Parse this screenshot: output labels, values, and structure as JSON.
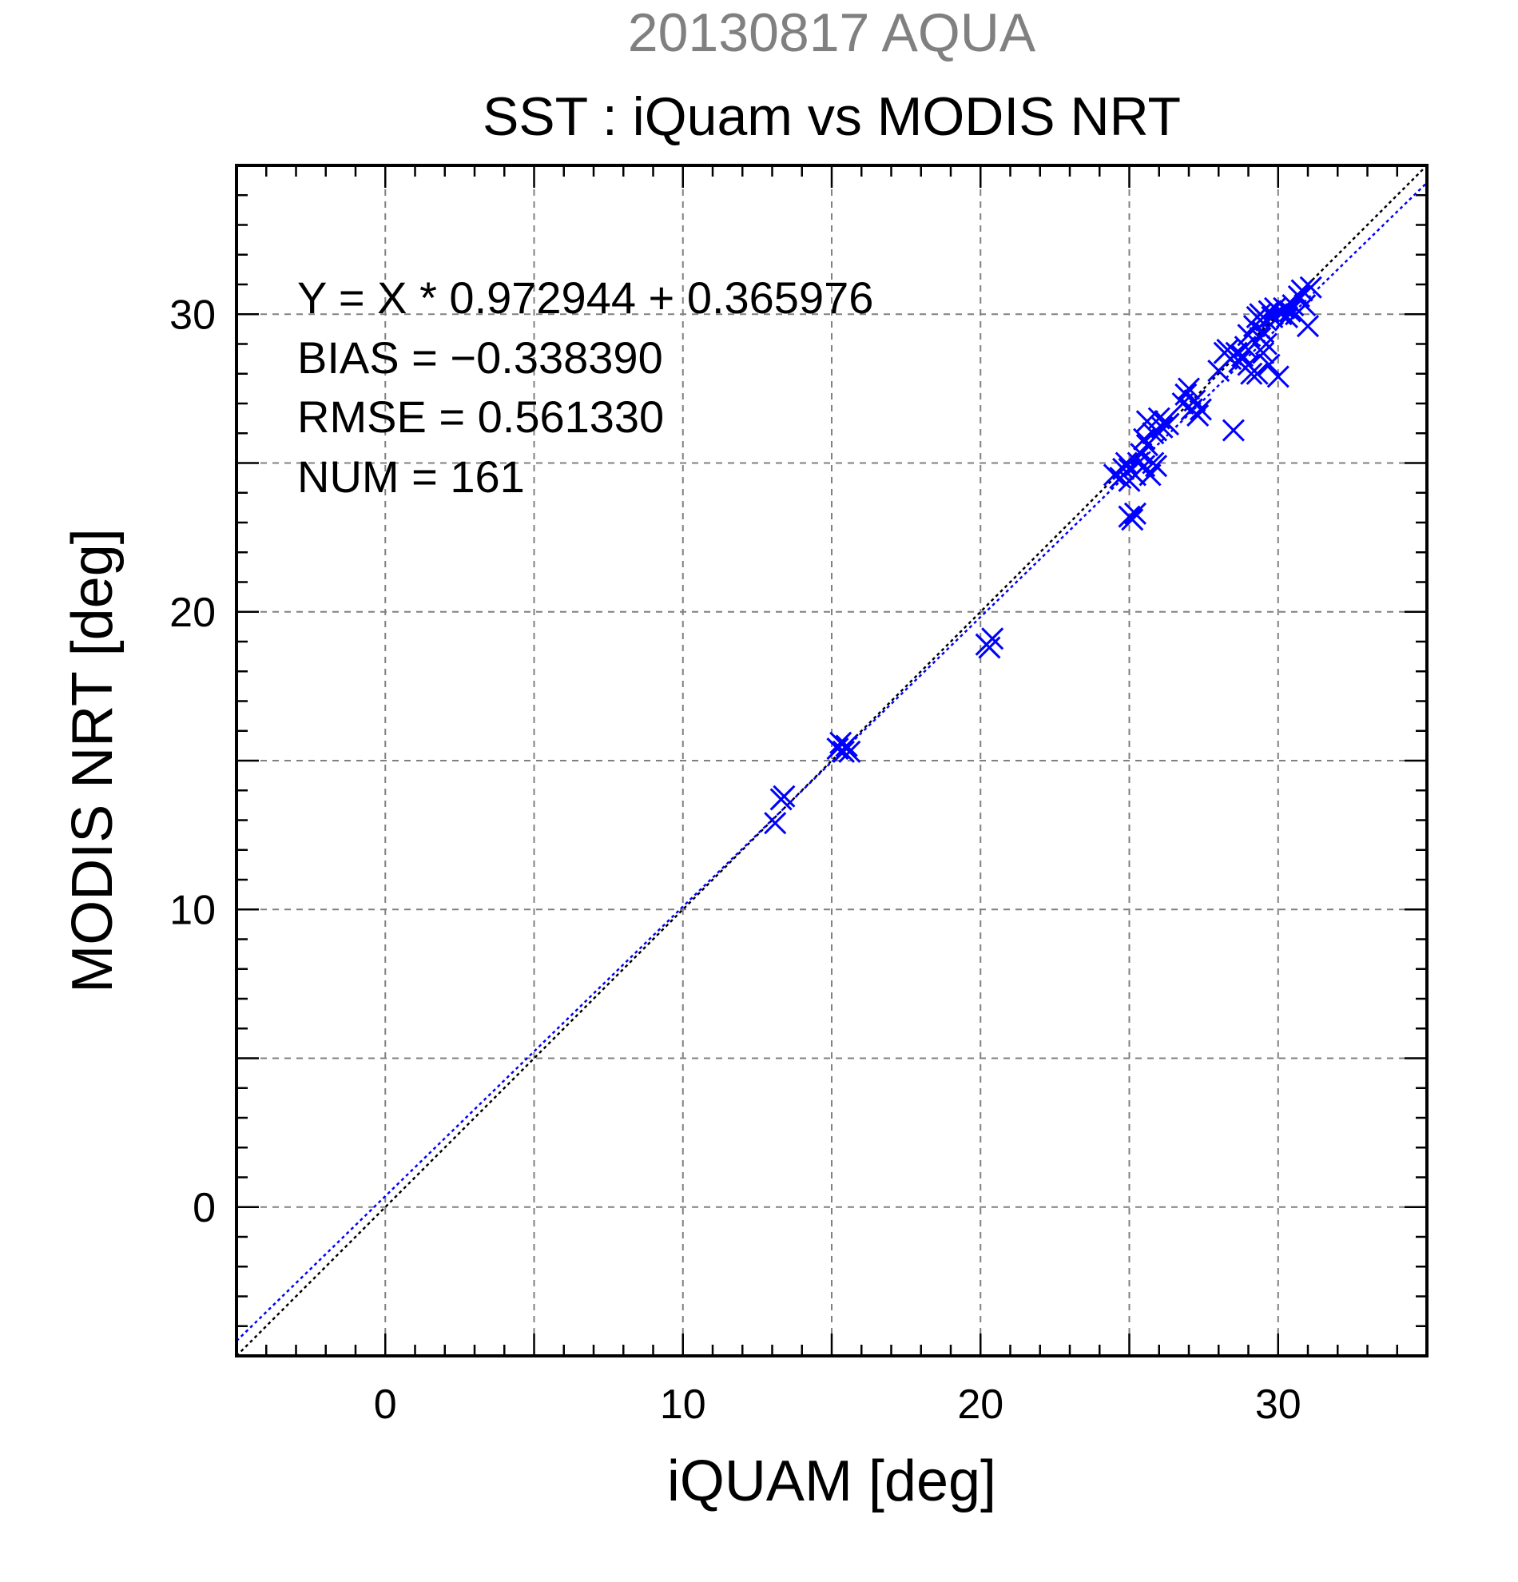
{
  "chart_data": {
    "type": "scatter",
    "supertitle": "20130817 AQUA",
    "title": "SST : iQuam vs MODIS NRT",
    "xlabel": "iQUAM [deg]",
    "ylabel": "MODIS NRT [deg]",
    "xlim": [
      -5,
      35
    ],
    "ylim": [
      -5,
      35
    ],
    "xticks": [
      0,
      10,
      20,
      30
    ],
    "yticks": [
      0,
      10,
      20,
      30
    ],
    "xtick_labels": [
      "0",
      "10",
      "20",
      "30"
    ],
    "ytick_labels": [
      "0",
      "10",
      "20",
      "30"
    ],
    "grid": true,
    "grid_step": 5,
    "minor_tick_step": 1,
    "marker": "x",
    "colors": {
      "points": "#0000ff",
      "fit_line": "#0000ff",
      "identity_line": "#000000",
      "grid": "#808080",
      "supertitle": "#808080"
    },
    "fit": {
      "slope": 0.972944,
      "intercept": 0.365976
    },
    "annotations": [
      "Y = X * 0.972944 + 0.365976",
      "BIAS = −0.338390",
      "RMSE = 0.561330",
      "NUM = 161"
    ],
    "series": [
      {
        "points": [
          [
            13.1,
            12.9
          ],
          [
            13.3,
            13.7
          ],
          [
            13.4,
            13.8
          ],
          [
            15.2,
            15.4
          ],
          [
            15.3,
            15.6
          ],
          [
            15.4,
            15.3
          ],
          [
            15.5,
            15.5
          ],
          [
            15.6,
            15.3
          ],
          [
            20.2,
            18.9
          ],
          [
            20.3,
            18.8
          ],
          [
            20.4,
            19.1
          ],
          [
            24.5,
            24.6
          ],
          [
            24.7,
            24.5
          ],
          [
            24.8,
            24.8
          ],
          [
            24.9,
            25.0
          ],
          [
            25.0,
            24.4
          ],
          [
            25.0,
            23.2
          ],
          [
            25.1,
            23.1
          ],
          [
            25.2,
            23.3
          ],
          [
            25.0,
            24.8
          ],
          [
            25.2,
            24.6
          ],
          [
            25.3,
            25.0
          ],
          [
            25.4,
            25.3
          ],
          [
            25.5,
            24.9
          ],
          [
            25.6,
            25.6
          ],
          [
            25.7,
            24.6
          ],
          [
            25.8,
            25.0
          ],
          [
            25.9,
            26.1
          ],
          [
            25.5,
            25.8
          ],
          [
            25.6,
            26.4
          ],
          [
            25.8,
            26.0
          ],
          [
            25.9,
            24.9
          ],
          [
            26.0,
            26.5
          ],
          [
            26.1,
            26.2
          ],
          [
            26.2,
            26.4
          ],
          [
            26.3,
            26.3
          ],
          [
            26.8,
            27.0
          ],
          [
            26.9,
            27.3
          ],
          [
            27.0,
            27.5
          ],
          [
            27.1,
            26.8
          ],
          [
            27.2,
            27.1
          ],
          [
            27.3,
            26.6
          ],
          [
            27.4,
            26.8
          ],
          [
            28.0,
            28.1
          ],
          [
            28.2,
            28.7
          ],
          [
            28.3,
            28.8
          ],
          [
            28.4,
            28.5
          ],
          [
            28.5,
            26.1
          ],
          [
            28.6,
            28.7
          ],
          [
            28.7,
            28.4
          ],
          [
            28.8,
            28.6
          ],
          [
            28.9,
            28.9
          ],
          [
            29.0,
            29.3
          ],
          [
            29.0,
            28.3
          ],
          [
            29.1,
            28.0
          ],
          [
            29.2,
            29.6
          ],
          [
            29.3,
            29.9
          ],
          [
            29.3,
            28.0
          ],
          [
            29.4,
            30.0
          ],
          [
            29.4,
            29.2
          ],
          [
            29.5,
            29.4
          ],
          [
            29.5,
            28.7
          ],
          [
            29.6,
            29.8
          ],
          [
            29.6,
            29.0
          ],
          [
            29.7,
            30.1
          ],
          [
            29.7,
            28.3
          ],
          [
            29.8,
            29.9
          ],
          [
            29.9,
            30.2
          ],
          [
            30.0,
            27.9
          ],
          [
            30.1,
            30.0
          ],
          [
            30.2,
            30.2
          ],
          [
            30.3,
            29.9
          ],
          [
            30.4,
            30.1
          ],
          [
            30.5,
            30.3
          ],
          [
            30.6,
            30.0
          ],
          [
            30.7,
            30.6
          ],
          [
            30.8,
            30.8
          ],
          [
            30.9,
            30.3
          ],
          [
            31.0,
            29.6
          ],
          [
            31.1,
            30.9
          ]
        ]
      }
    ]
  }
}
